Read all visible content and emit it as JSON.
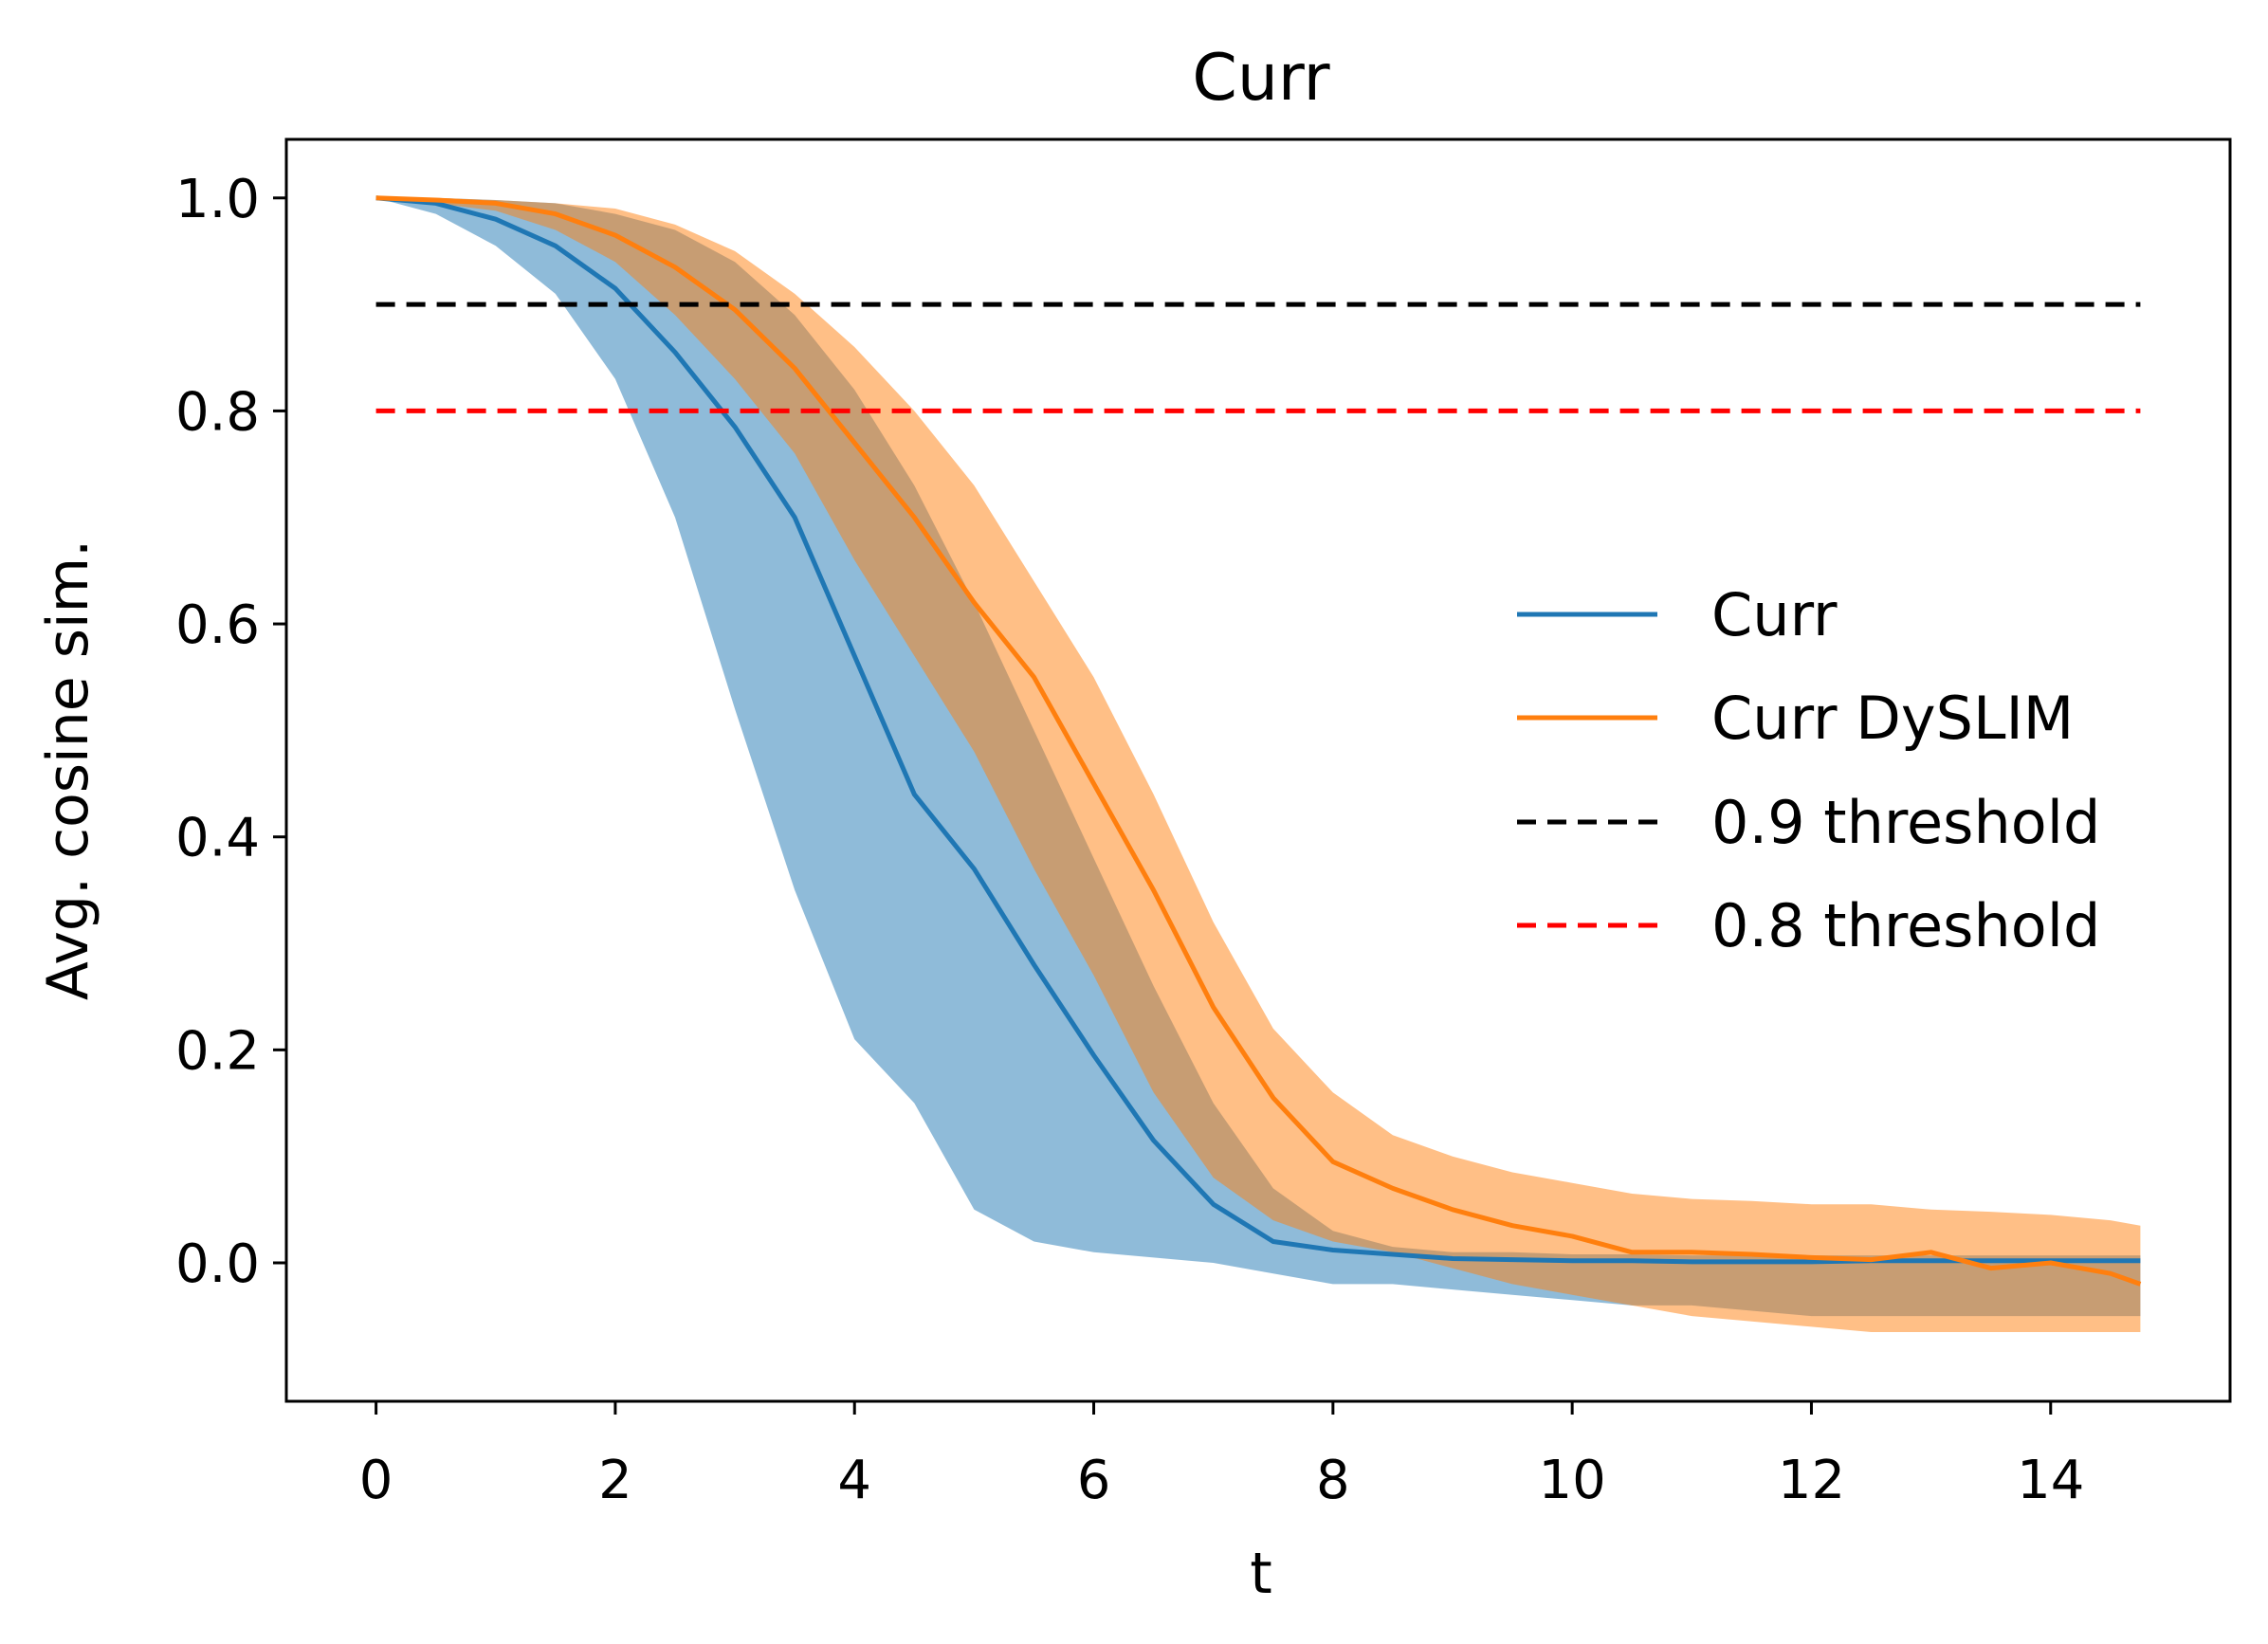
{
  "chart_data": {
    "type": "line",
    "title": "Curr",
    "xlabel": "t",
    "ylabel": "Avg. cosine sim.",
    "xlim": [
      -0.75,
      15.5
    ],
    "ylim": [
      -0.13,
      1.055
    ],
    "xticks": [
      0,
      2,
      4,
      6,
      8,
      10,
      12,
      14
    ],
    "yticks": [
      0.0,
      0.2,
      0.4,
      0.6,
      0.8,
      1.0
    ],
    "legend_position": "center-right",
    "grid": false,
    "series": [
      {
        "name": "Curr",
        "color": "#1f77b4",
        "x": [
          0,
          0.5,
          1,
          1.5,
          2,
          2.5,
          3,
          3.5,
          4,
          4.5,
          5,
          5.5,
          6,
          6.5,
          7,
          7.5,
          8,
          8.5,
          9,
          9.5,
          10,
          10.5,
          11,
          11.5,
          12,
          12.5,
          13,
          13.5,
          14,
          14.5,
          14.75
        ],
        "y": [
          1.0,
          0.995,
          0.98,
          0.955,
          0.915,
          0.855,
          0.785,
          0.7,
          0.57,
          0.44,
          0.37,
          0.28,
          0.195,
          0.115,
          0.055,
          0.02,
          0.012,
          0.008,
          0.004,
          0.003,
          0.002,
          0.002,
          0.001,
          0.001,
          0.001,
          0.002,
          0.002,
          0.002,
          0.002,
          0.002,
          0.002
        ],
        "band_upper": [
          1.0,
          1.0,
          0.998,
          0.995,
          0.985,
          0.97,
          0.94,
          0.89,
          0.82,
          0.73,
          0.62,
          0.5,
          0.38,
          0.26,
          0.15,
          0.07,
          0.03,
          0.015,
          0.01,
          0.01,
          0.008,
          0.008,
          0.007,
          0.007,
          0.007,
          0.007,
          0.007,
          0.007,
          0.007,
          0.007,
          0.007
        ],
        "band_lower": [
          1.0,
          0.985,
          0.955,
          0.91,
          0.83,
          0.7,
          0.52,
          0.35,
          0.21,
          0.15,
          0.05,
          0.02,
          0.01,
          0.005,
          0.0,
          -0.01,
          -0.02,
          -0.02,
          -0.025,
          -0.03,
          -0.035,
          -0.04,
          -0.04,
          -0.045,
          -0.05,
          -0.05,
          -0.05,
          -0.05,
          -0.05,
          -0.05,
          -0.05
        ]
      },
      {
        "name": "Curr DySLIM",
        "color": "#ff7f0e",
        "x": [
          0,
          0.5,
          1,
          1.5,
          2,
          2.5,
          3,
          3.5,
          4,
          4.5,
          5,
          5.5,
          6,
          6.5,
          7,
          7.5,
          8,
          8.5,
          9,
          9.5,
          10,
          10.5,
          11,
          11.5,
          12,
          12.5,
          13,
          13.5,
          14,
          14.5,
          14.75
        ],
        "y": [
          1.0,
          0.998,
          0.995,
          0.985,
          0.965,
          0.935,
          0.895,
          0.84,
          0.77,
          0.7,
          0.62,
          0.55,
          0.45,
          0.35,
          0.24,
          0.155,
          0.095,
          0.07,
          0.05,
          0.035,
          0.025,
          0.01,
          0.01,
          0.008,
          0.005,
          0.003,
          0.01,
          -0.005,
          0.0,
          -0.01,
          -0.02
        ],
        "band_upper": [
          1.0,
          1.0,
          0.998,
          0.995,
          0.99,
          0.975,
          0.95,
          0.91,
          0.86,
          0.8,
          0.73,
          0.64,
          0.55,
          0.44,
          0.32,
          0.22,
          0.16,
          0.12,
          0.1,
          0.085,
          0.075,
          0.065,
          0.06,
          0.058,
          0.055,
          0.055,
          0.05,
          0.048,
          0.045,
          0.04,
          0.035
        ],
        "band_lower": [
          1.0,
          0.995,
          0.988,
          0.97,
          0.94,
          0.89,
          0.83,
          0.76,
          0.66,
          0.57,
          0.48,
          0.37,
          0.27,
          0.16,
          0.08,
          0.04,
          0.02,
          0.01,
          -0.005,
          -0.02,
          -0.03,
          -0.04,
          -0.05,
          -0.055,
          -0.06,
          -0.065,
          -0.065,
          -0.065,
          -0.065,
          -0.065,
          -0.065
        ]
      },
      {
        "name": "0.9 threshold",
        "color": "#000000",
        "dashed": true,
        "x": [
          0,
          14.75
        ],
        "y": [
          0.9,
          0.9
        ]
      },
      {
        "name": "0.8 threshold",
        "color": "#ff0000",
        "dashed": true,
        "x": [
          0,
          14.75
        ],
        "y": [
          0.8,
          0.8
        ]
      }
    ]
  }
}
